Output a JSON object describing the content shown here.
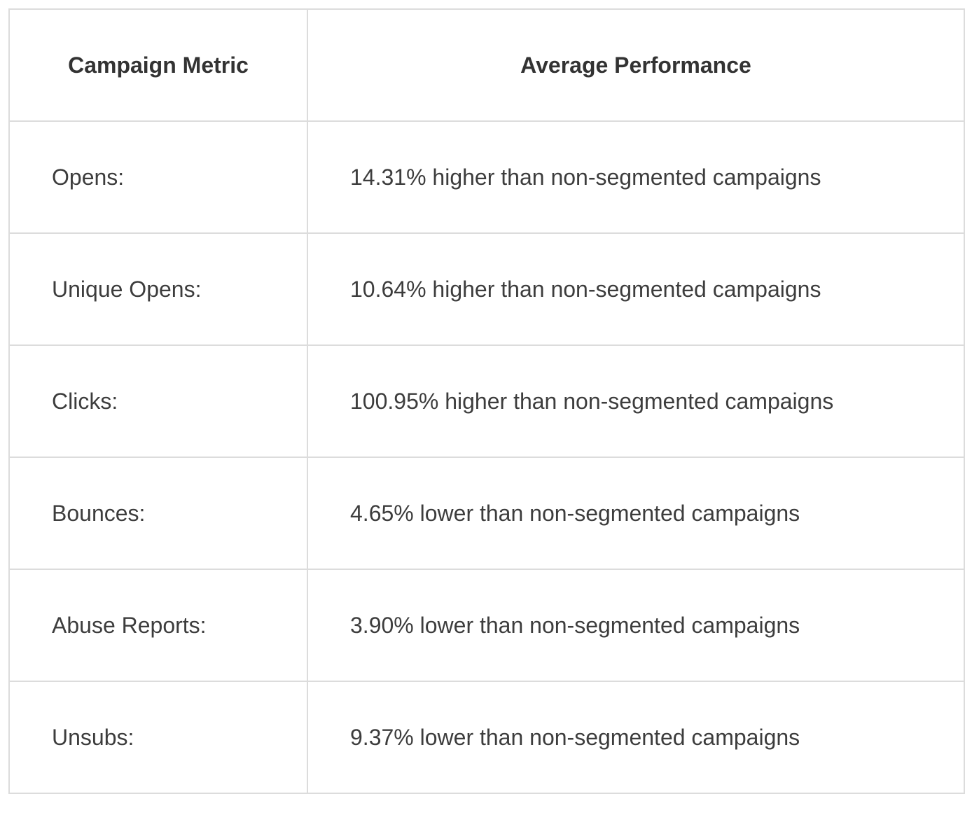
{
  "table": {
    "headers": [
      "Campaign Metric",
      "Average Performance"
    ],
    "rows": [
      {
        "metric": "Opens:",
        "performance": "14.31% higher than non-segmented campaigns"
      },
      {
        "metric": "Unique Opens:",
        "performance": "10.64% higher than non-segmented campaigns"
      },
      {
        "metric": "Clicks:",
        "performance": "100.95% higher than non-segmented campaigns"
      },
      {
        "metric": "Bounces:",
        "performance": "4.65% lower than non-segmented campaigns"
      },
      {
        "metric": "Abuse Reports:",
        "performance": "3.90% lower than non-segmented campaigns"
      },
      {
        "metric": "Unsubs:",
        "performance": "9.37% lower than non-segmented campaigns"
      }
    ]
  },
  "colors": {
    "border": "#dcdcdc",
    "text": "#3d3d3d",
    "header_text": "#333333",
    "background": "#ffffff"
  }
}
